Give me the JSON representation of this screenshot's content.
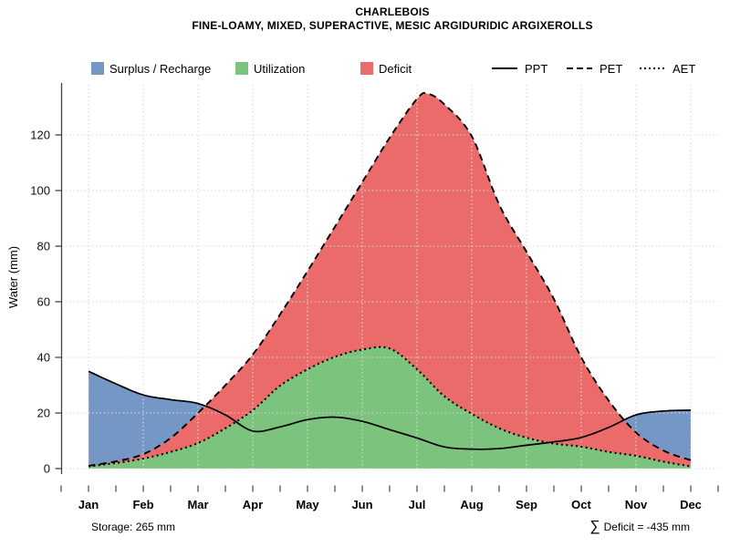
{
  "title": "CHARLEBOIS",
  "subtitle": "FINE-LOAMY, MIXED, SUPERACTIVE, MESIC ARGIDURIDIC ARGIXEROLLS",
  "legend": {
    "areas": [
      {
        "label": "Surplus / Recharge",
        "color": "#7597C5"
      },
      {
        "label": "Utilization",
        "color": "#7CC37D"
      },
      {
        "label": "Deficit",
        "color": "#EB6A6A"
      }
    ],
    "lines": [
      {
        "label": "PPT",
        "style": "solid"
      },
      {
        "label": "PET",
        "style": "dashed"
      },
      {
        "label": "AET",
        "style": "dotted"
      }
    ]
  },
  "footer": {
    "storage": "Storage: 265 mm",
    "sigma": "∑",
    "deficit_text": "Deficit = -435 mm"
  },
  "chart_data": {
    "type": "area",
    "title": "CHARLEBOIS",
    "subtitle": "FINE-LOAMY, MIXED, SUPERACTIVE, MESIC ARGIDURIDIC ARGIXEROLLS",
    "ylabel": "Water (mm)",
    "months": [
      "Jan",
      "Feb",
      "Mar",
      "Apr",
      "May",
      "Jun",
      "Jul",
      "Aug",
      "Sep",
      "Oct",
      "Nov",
      "Dec"
    ],
    "x_unit": "month index (Jan=0, Dec=11)",
    "ylim": [
      0,
      140
    ],
    "yticks": [
      0,
      20,
      40,
      60,
      80,
      100,
      120
    ],
    "grid": "dotted, at every month and every 20 mm",
    "legend_position": "top",
    "colors": {
      "surplus": "#7597C5",
      "utilization": "#7CC37D",
      "deficit": "#EB6A6A",
      "line": "#000000",
      "grid": "#DADADA"
    },
    "series": [
      {
        "name": "PPT",
        "style": "solid",
        "points": [
          [
            0,
            35
          ],
          [
            0.5,
            30.5
          ],
          [
            1,
            26.5
          ],
          [
            1.5,
            24.8
          ],
          [
            2,
            23.4
          ],
          [
            2.5,
            19.3
          ],
          [
            3,
            13.5
          ],
          [
            3.5,
            15
          ],
          [
            4,
            17.6
          ],
          [
            4.5,
            18.5
          ],
          [
            5,
            17
          ],
          [
            5.5,
            14
          ],
          [
            6,
            11
          ],
          [
            6.5,
            7.8
          ],
          [
            7,
            7
          ],
          [
            7.5,
            7.2
          ],
          [
            8,
            8.4
          ],
          [
            8.5,
            9.6
          ],
          [
            9,
            11.2
          ],
          [
            9.5,
            14.8
          ],
          [
            10,
            19.3
          ],
          [
            10.5,
            20.7
          ],
          [
            11,
            21
          ]
        ]
      },
      {
        "name": "PET",
        "style": "dashed",
        "points": [
          [
            0,
            1
          ],
          [
            0.5,
            2.6
          ],
          [
            1,
            5.2
          ],
          [
            1.5,
            11
          ],
          [
            2,
            20
          ],
          [
            2.5,
            30
          ],
          [
            3,
            41
          ],
          [
            3.5,
            55.5
          ],
          [
            4,
            71
          ],
          [
            4.5,
            87
          ],
          [
            5,
            103
          ],
          [
            5.5,
            119
          ],
          [
            6,
            133
          ],
          [
            6.2,
            134.8
          ],
          [
            6.5,
            131
          ],
          [
            7,
            119.5
          ],
          [
            7.5,
            95
          ],
          [
            8,
            78
          ],
          [
            8.5,
            61
          ],
          [
            9,
            40
          ],
          [
            9.5,
            24.5
          ],
          [
            10,
            13
          ],
          [
            10.5,
            6.5
          ],
          [
            11,
            3
          ]
        ]
      },
      {
        "name": "AET",
        "style": "dotted",
        "points": [
          [
            0,
            0.8
          ],
          [
            0.5,
            2
          ],
          [
            1,
            3.6
          ],
          [
            1.5,
            6
          ],
          [
            2,
            9.2
          ],
          [
            2.5,
            14.5
          ],
          [
            3,
            21
          ],
          [
            3.5,
            29.8
          ],
          [
            4,
            35.7
          ],
          [
            4.5,
            40.2
          ],
          [
            5,
            42.8
          ],
          [
            5.5,
            43.2
          ],
          [
            6,
            35.7
          ],
          [
            6.5,
            26
          ],
          [
            7,
            19.7
          ],
          [
            7.5,
            14.5
          ],
          [
            8,
            11.1
          ],
          [
            8.5,
            9
          ],
          [
            9,
            7.9
          ],
          [
            9.5,
            6
          ],
          [
            10,
            4.6
          ],
          [
            10.5,
            2.5
          ],
          [
            11,
            0.8
          ]
        ]
      }
    ],
    "area_definitions": {
      "surplus_recharge": "between PPT and PET where PPT > PET (Jan-Mar and Nov-Dec)",
      "deficit": "between PET and AET",
      "utilization": "between AET and 0"
    },
    "annotations": {
      "storage_mm": 265,
      "deficit_sum_mm": -435
    }
  }
}
